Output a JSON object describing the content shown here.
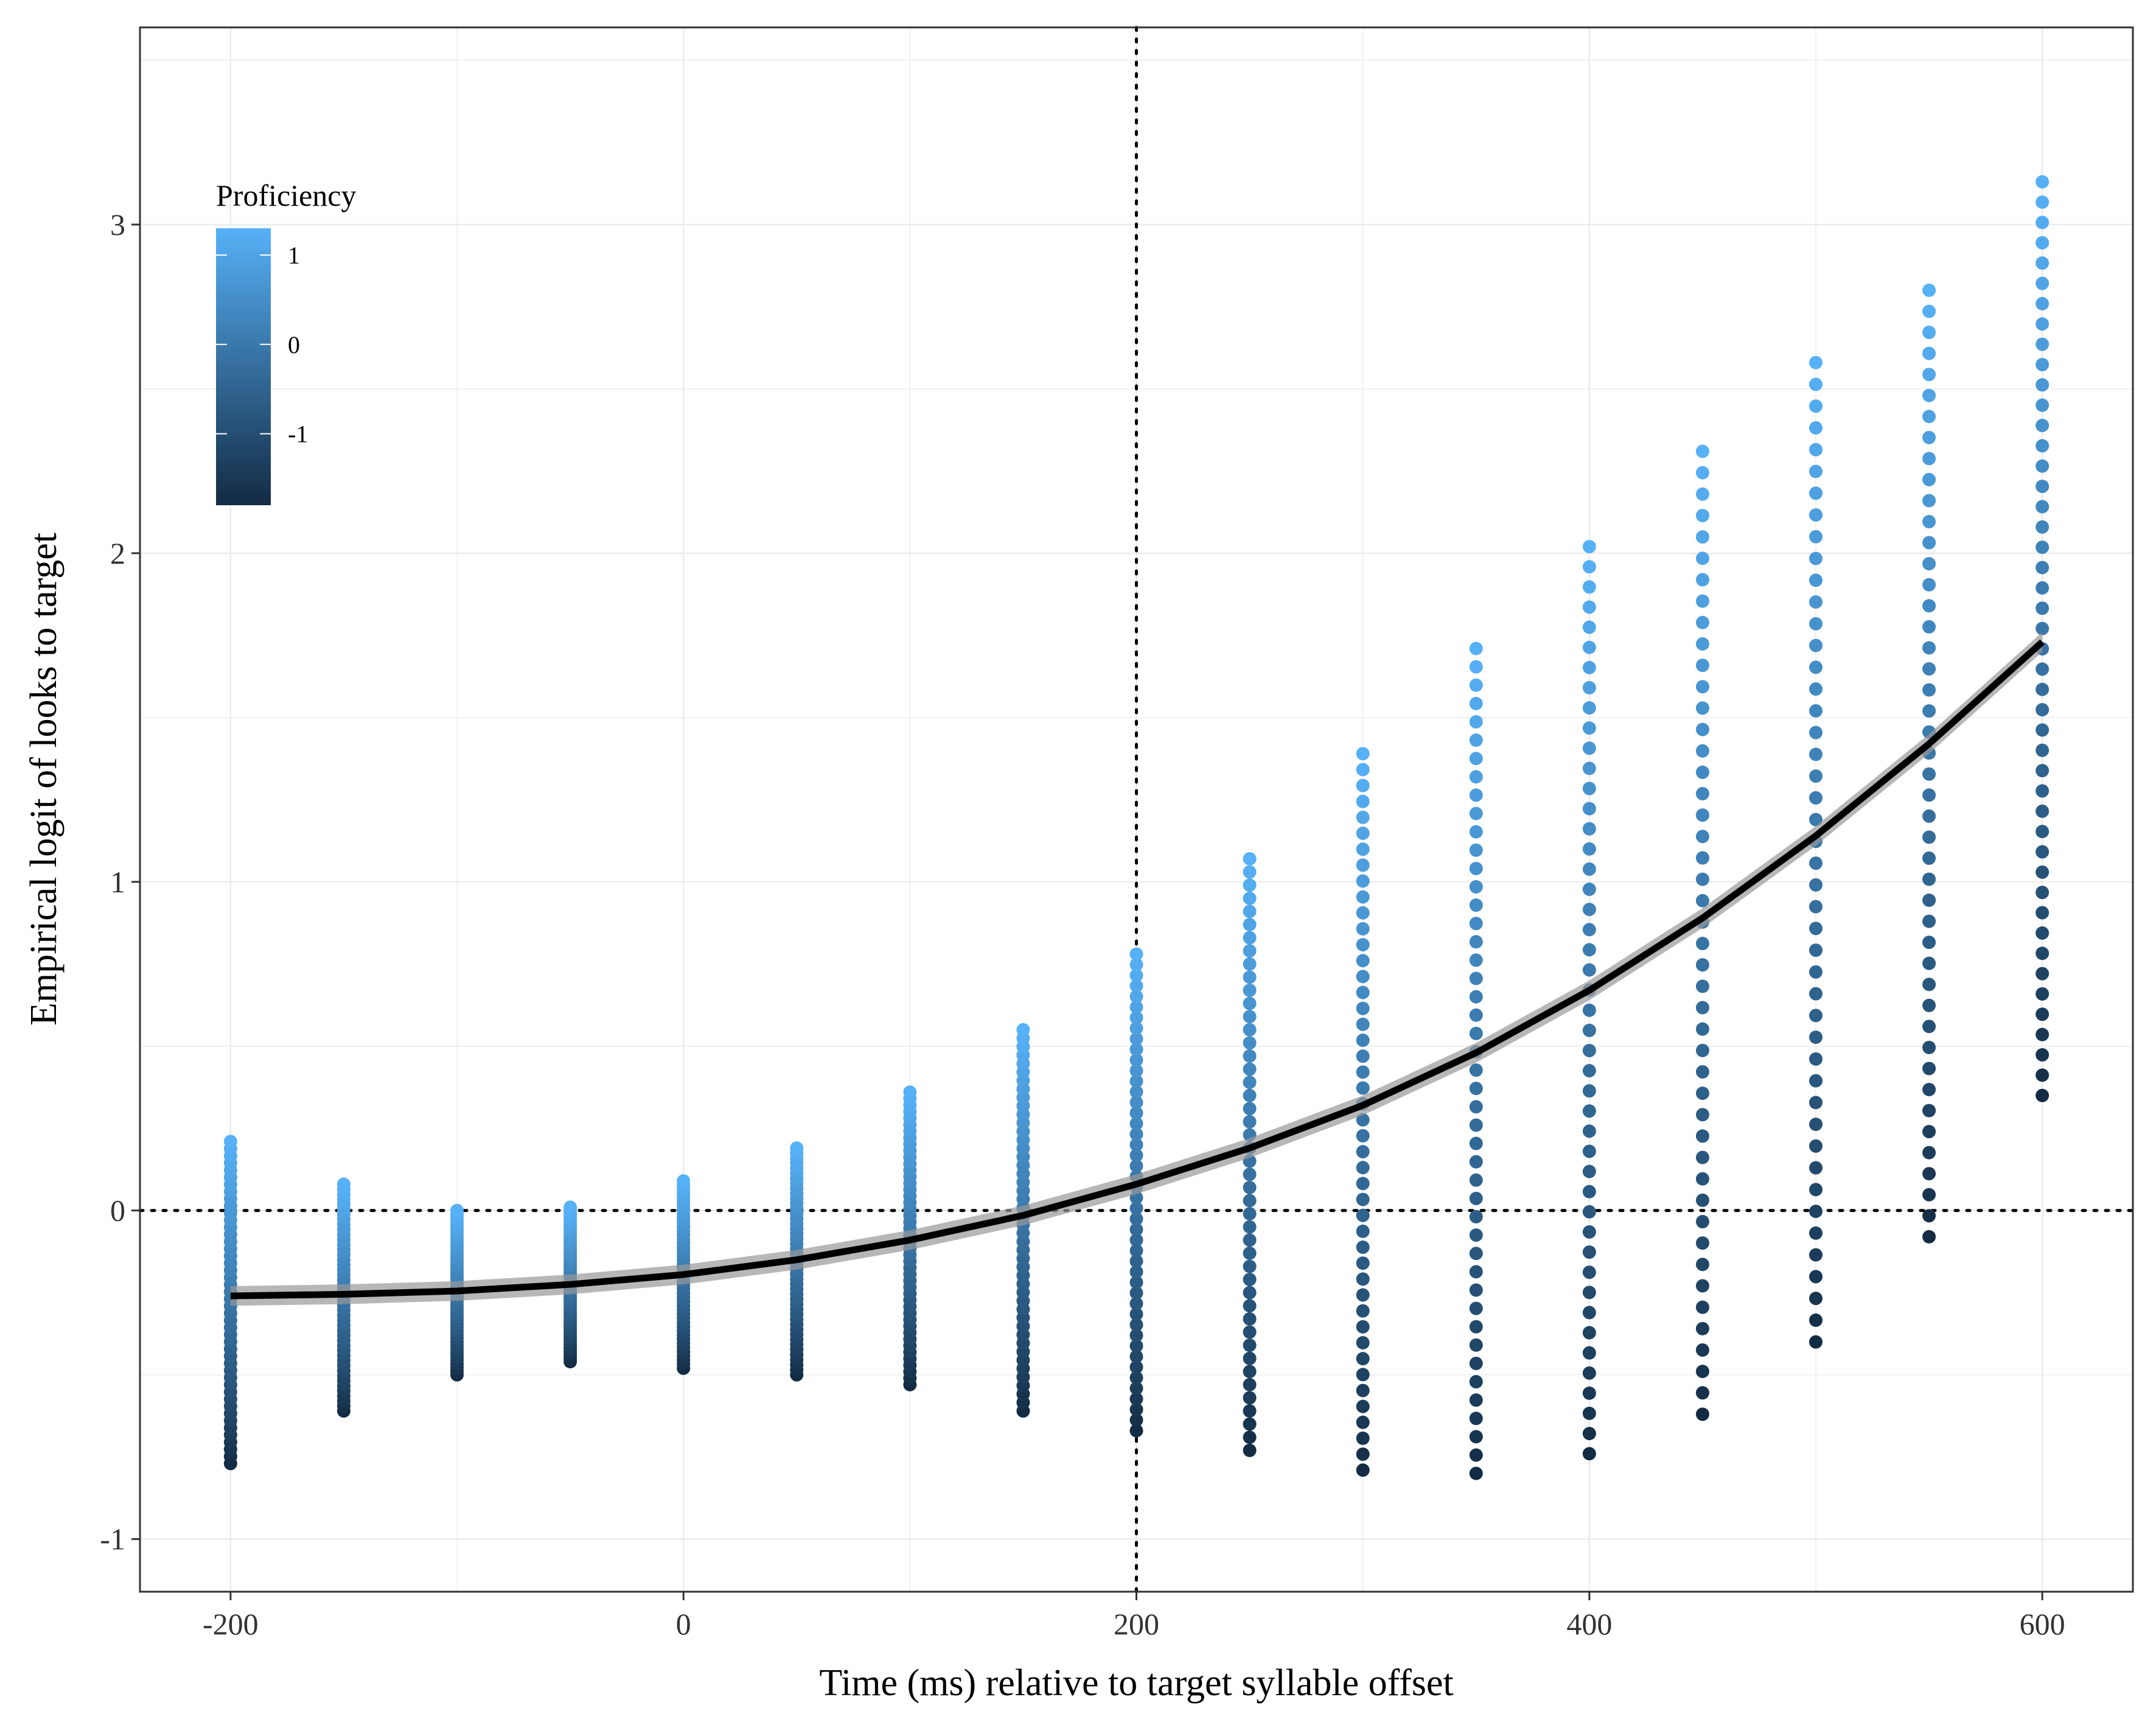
{
  "chart_data": {
    "type": "scatter",
    "title": "",
    "xlabel": "Time (ms) relative to target syllable offset",
    "ylabel": "Empirical logit of looks to target",
    "xlim": [
      -240,
      640
    ],
    "ylim": [
      -1.16,
      3.6
    ],
    "x_ticks": [
      -200,
      0,
      200,
      400,
      600
    ],
    "x_tick_labels": [
      "-200",
      "0",
      "200",
      "400",
      "600"
    ],
    "y_ticks": [
      -1,
      0,
      1,
      2,
      3
    ],
    "y_tick_labels": [
      "-1",
      "0",
      "1",
      "2",
      "3"
    ],
    "grid": true,
    "reference_lines": {
      "vertical_x": 200,
      "horizontal_y": 0,
      "style": "dotted"
    },
    "legend": {
      "title": "Proficiency",
      "type": "colorbar",
      "placement": "top-left",
      "range": [
        -1.8,
        1.3
      ],
      "ticks": [
        1,
        0,
        -1
      ],
      "tick_labels": [
        "1",
        "0",
        "-1"
      ],
      "color_low": "#132B43",
      "color_high": "#56B1F7"
    },
    "point_columns": [
      {
        "x": -200,
        "y_min": -0.77,
        "y_max": 0.21
      },
      {
        "x": -150,
        "y_min": -0.61,
        "y_max": 0.08
      },
      {
        "x": -100,
        "y_min": -0.5,
        "y_max": 0.0
      },
      {
        "x": -50,
        "y_min": -0.46,
        "y_max": 0.01
      },
      {
        "x": 0,
        "y_min": -0.48,
        "y_max": 0.09
      },
      {
        "x": 50,
        "y_min": -0.5,
        "y_max": 0.19
      },
      {
        "x": 100,
        "y_min": -0.53,
        "y_max": 0.36
      },
      {
        "x": 150,
        "y_min": -0.61,
        "y_max": 0.55
      },
      {
        "x": 200,
        "y_min": -0.67,
        "y_max": 0.78
      },
      {
        "x": 250,
        "y_min": -0.73,
        "y_max": 1.07
      },
      {
        "x": 300,
        "y_min": -0.79,
        "y_max": 1.39
      },
      {
        "x": 350,
        "y_min": -0.8,
        "y_max": 1.71
      },
      {
        "x": 400,
        "y_min": -0.74,
        "y_max": 2.02
      },
      {
        "x": 450,
        "y_min": -0.62,
        "y_max": 2.31
      },
      {
        "x": 500,
        "y_min": -0.4,
        "y_max": 2.58
      },
      {
        "x": 550,
        "y_min": -0.08,
        "y_max": 2.8
      },
      {
        "x": 600,
        "y_min": 0.35,
        "y_max": 3.13
      }
    ],
    "fitted_line": {
      "x": [
        -200,
        -150,
        -100,
        -50,
        0,
        50,
        100,
        150,
        200,
        250,
        300,
        350,
        400,
        450,
        500,
        550,
        600
      ],
      "y": [
        -0.26,
        -0.255,
        -0.245,
        -0.225,
        -0.195,
        -0.15,
        -0.09,
        -0.015,
        0.08,
        0.19,
        0.32,
        0.48,
        0.67,
        0.89,
        1.14,
        1.42,
        1.73
      ],
      "color": "#000000",
      "ribbon_color": "#999999"
    }
  }
}
